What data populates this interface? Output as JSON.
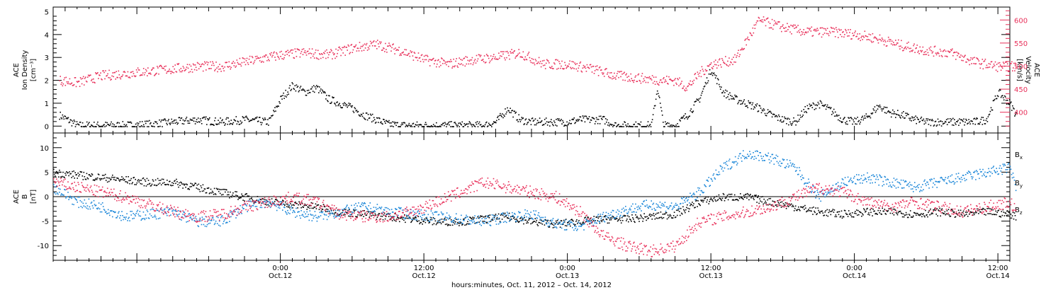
{
  "colors": {
    "black": "#000000",
    "red": "#e8305a",
    "blue": "#1a86d8"
  },
  "xaxis": {
    "title": "hours:minutes, Oct. 11, 2012 – Oct. 14, 2012",
    "range_hours": [
      -19,
      61
    ],
    "major_ticks": [
      {
        "hour": 0,
        "time": "0:00",
        "date": "Oct.12"
      },
      {
        "hour": 12,
        "time": "12:00",
        "date": "Oct.12"
      },
      {
        "hour": 24,
        "time": "0:00",
        "date": "Oct.13"
      },
      {
        "hour": 36,
        "time": "12:00",
        "date": "Oct.13"
      },
      {
        "hour": 48,
        "time": "0:00",
        "date": "Oct.14"
      },
      {
        "hour": 60,
        "time": "12:00",
        "date": "Oct.14"
      }
    ]
  },
  "panel1": {
    "left_title": [
      "ACE",
      "Ion Density",
      "[cm⁻³]"
    ],
    "right_title": [
      "ACE",
      "Velocity",
      "[km/s]"
    ],
    "left_ticks": [
      "0",
      "1",
      "2",
      "3",
      "4",
      "5"
    ],
    "right_ticks": [
      "400",
      "450",
      "500",
      "550",
      "600"
    ]
  },
  "panel2": {
    "left_title": [
      "ACE",
      "B",
      "[nT]"
    ],
    "ticks": [
      "-10",
      "-5",
      "0",
      "5",
      "10"
    ],
    "legend": [
      {
        "label": "B",
        "sub": "x",
        "color": "#000000"
      },
      {
        "label": "B",
        "sub": "y",
        "color": "#1a86d8"
      },
      {
        "label": "B",
        "sub": "z",
        "color": "#e8305a"
      }
    ]
  },
  "chart_data": [
    {
      "type": "scatter",
      "panel": "top",
      "xlabel": "hours:minutes, Oct. 11, 2012 – Oct. 14, 2012",
      "series": [
        {
          "name": "Ion Density",
          "axis": "left",
          "ylim": [
            -0.3,
            5.2
          ],
          "color": "#000000",
          "x": [
            -18.5,
            -17,
            -15,
            -13,
            -11,
            -9,
            -7,
            -5,
            -3,
            -1,
            0,
            1,
            2,
            3,
            4,
            5,
            6,
            7,
            8,
            9,
            10,
            11,
            12,
            13,
            14,
            15,
            16,
            17,
            18,
            19,
            20,
            21,
            22,
            23,
            24,
            25,
            26,
            27,
            28,
            29,
            30,
            31,
            31.5,
            32,
            33,
            34,
            35,
            36,
            37,
            38,
            39,
            40,
            41,
            42,
            43,
            44,
            45,
            46,
            47,
            48,
            49,
            50,
            51,
            52,
            53,
            54,
            55,
            56,
            57,
            58,
            59,
            60,
            61,
            61.5
          ],
          "y": [
            0.5,
            0.05,
            0.05,
            0.05,
            0.1,
            0.2,
            0.3,
            0.2,
            0.3,
            0.2,
            1.2,
            1.8,
            1.5,
            1.7,
            1.2,
            1.0,
            0.8,
            0.5,
            0.3,
            0.1,
            0.05,
            0.05,
            0.05,
            0.05,
            0.05,
            0.05,
            0.05,
            0.05,
            0.2,
            0.8,
            0.3,
            0.2,
            0.2,
            0.2,
            0.2,
            0.3,
            0.3,
            0.3,
            0.05,
            0.05,
            0.05,
            0.05,
            1.7,
            0.05,
            0.05,
            0.5,
            1.2,
            2.5,
            1.5,
            1.2,
            1.0,
            0.8,
            0.5,
            0.3,
            0.2,
            0.8,
            1.0,
            0.7,
            0.3,
            0.2,
            0.4,
            0.9,
            0.6,
            0.5,
            0.3,
            0.2,
            0.2,
            0.2,
            0.2,
            0.2,
            0.3,
            1.5,
            1.0,
            0.5
          ]
        },
        {
          "name": "Velocity",
          "axis": "right",
          "ylim": [
            355,
            628
          ],
          "color": "#e8305a",
          "x": [
            -18.5,
            -17,
            -15,
            -13,
            -11,
            -9,
            -7,
            -5,
            -3,
            -1,
            0,
            2,
            4,
            6,
            8,
            10,
            12,
            14,
            16,
            18,
            20,
            22,
            24,
            26,
            28,
            30,
            32,
            33,
            34,
            35,
            36,
            37,
            38,
            40,
            42,
            44,
            46,
            48,
            50,
            52,
            54,
            56,
            58,
            60,
            61.5
          ],
          "y": [
            470,
            465,
            480,
            485,
            490,
            495,
            500,
            500,
            510,
            520,
            525,
            530,
            525,
            540,
            548,
            535,
            515,
            505,
            515,
            520,
            530,
            505,
            505,
            495,
            480,
            475,
            470,
            470,
            455,
            485,
            505,
            510,
            515,
            600,
            585,
            575,
            575,
            570,
            560,
            545,
            535,
            530,
            510,
            500,
            500
          ]
        }
      ]
    },
    {
      "type": "scatter",
      "panel": "bottom",
      "ylabel": "B [nT]",
      "ylim": [
        -13,
        13
      ],
      "x": [
        -19,
        -17,
        -15,
        -13,
        -11,
        -9,
        -7,
        -5,
        -3,
        -1,
        1,
        3,
        5,
        7,
        9,
        11,
        13,
        15,
        17,
        19,
        21,
        23,
        25,
        27,
        29,
        31,
        33,
        35,
        37,
        39,
        41,
        43,
        45,
        47,
        49,
        51,
        53,
        55,
        57,
        59,
        61,
        61.5
      ],
      "series": [
        {
          "name": "B_x",
          "color": "#000000",
          "y": [
            5,
            4.5,
            4,
            3.5,
            3,
            3,
            2,
            1,
            0,
            -1,
            -1.5,
            -2,
            -3,
            -3.5,
            -4,
            -4.5,
            -5,
            -5,
            -4.5,
            -4,
            -5,
            -5.5,
            -5,
            -4.5,
            -4.5,
            -4,
            -3.5,
            -1,
            0,
            0,
            -1,
            -2,
            -3,
            -3.5,
            -3,
            -3,
            -3.5,
            -3,
            -3.5,
            -3,
            -3.5,
            -4
          ]
        },
        {
          "name": "B_y",
          "color": "#1a86d8",
          "y": [
            2,
            -1,
            -2,
            -4,
            -3.5,
            -3,
            -5,
            -5,
            -2,
            -1,
            -3,
            -4,
            -3,
            -2,
            -3,
            -3.5,
            -4,
            -4.5,
            -5,
            -4,
            -3.5,
            -5.5,
            -6,
            -4,
            -2.5,
            -1.5,
            -2,
            1,
            6,
            9,
            8,
            6,
            0,
            3,
            4,
            3,
            2,
            3,
            4,
            5,
            6,
            2
          ]
        },
        {
          "name": "B_z",
          "color": "#e8305a",
          "y": [
            3,
            2,
            1,
            0,
            -1.5,
            -3,
            -4,
            -3.5,
            -2,
            -1,
            0,
            -1,
            -3.5,
            -4,
            -4,
            -3,
            -1,
            1,
            3,
            2,
            1,
            0,
            -3,
            -8,
            -10,
            -11,
            -10,
            -5,
            -4,
            -3,
            -2,
            0,
            2,
            1,
            -1,
            -2,
            -1,
            -2,
            -3,
            -2,
            -1,
            -3
          ]
        }
      ]
    }
  ]
}
